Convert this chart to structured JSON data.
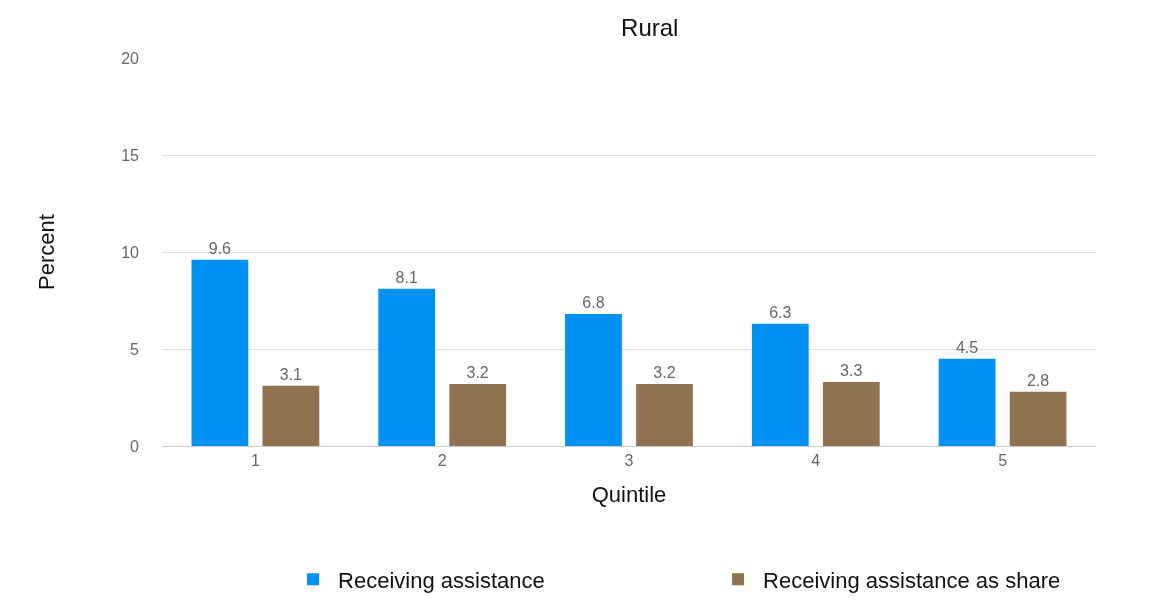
{
  "chart_data": {
    "type": "bar",
    "title": "Rural",
    "xlabel": "Quintile",
    "ylabel": "Percent",
    "categories": [
      "1",
      "2",
      "3",
      "4",
      "5"
    ],
    "series": [
      {
        "name": "Receiving assistance",
        "color": "#0091f2",
        "values": [
          9.6,
          8.1,
          6.8,
          6.3,
          4.5
        ]
      },
      {
        "name": "Receiving assistance as share",
        "color": "#8f7250",
        "values": [
          3.1,
          3.2,
          3.2,
          3.3,
          2.8
        ]
      }
    ],
    "ylim": [
      0,
      20
    ],
    "yticks": [
      0,
      5,
      10,
      15,
      20
    ],
    "grid": "y",
    "legend": "bottom",
    "data_labels": true
  }
}
